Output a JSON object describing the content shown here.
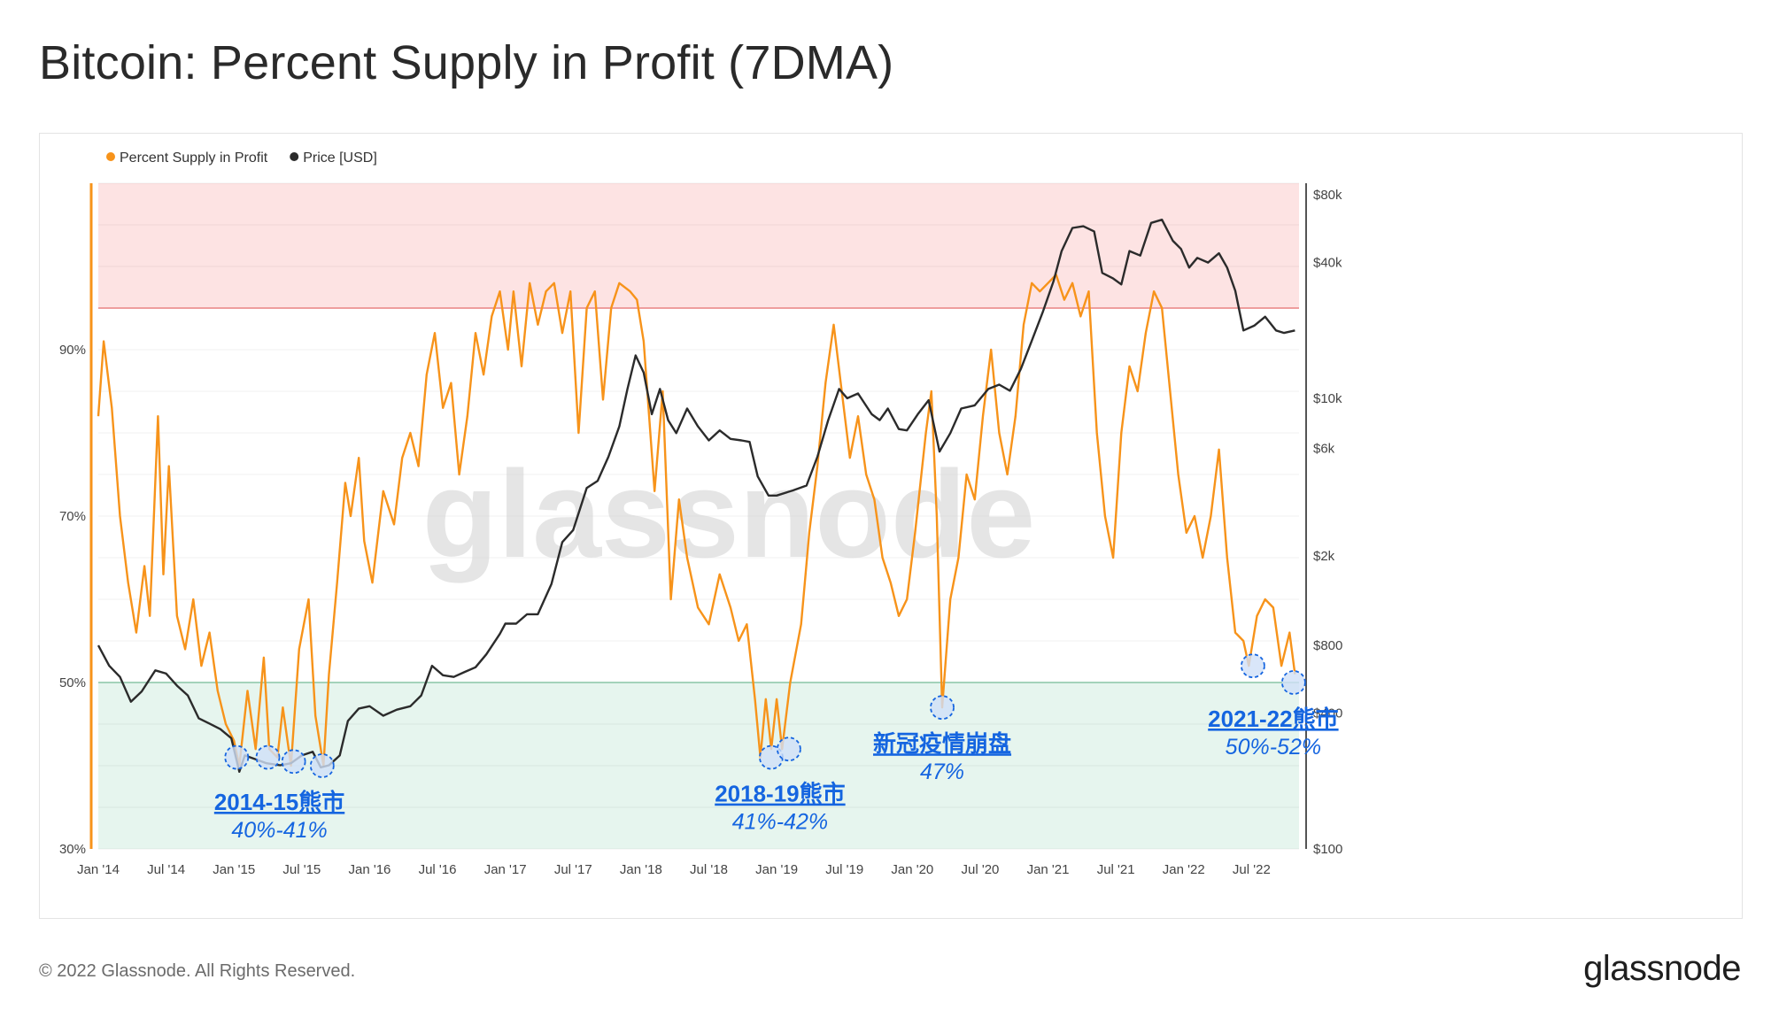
{
  "title": "Bitcoin: Percent Supply in Profit (7DMA)",
  "footer": {
    "copyright": "© 2022 Glassnode. All Rights Reserved.",
    "logo": "glassnode"
  },
  "watermark": "glassnode",
  "colors": {
    "supply": "#f7931a",
    "price": "#2b2b2b",
    "upper_zone": "#fde3e3",
    "upper_line": "#f5a3a3",
    "lower_zone": "#e6f5ee",
    "lower_line": "#a8d8c0",
    "annotation": "#1565e0"
  },
  "chart_data": {
    "type": "line",
    "legend": {
      "placement": "top-left",
      "items": [
        {
          "label": "Percent Supply in Profit",
          "color": "#f7931a"
        },
        {
          "label": "Price [USD]",
          "color": "#2b2b2b"
        }
      ]
    },
    "x_ticks": [
      "Jan '14",
      "Jul '14",
      "Jan '15",
      "Jul '15",
      "Jan '16",
      "Jul '16",
      "Jan '17",
      "Jul '17",
      "Jan '18",
      "Jul '18",
      "Jan '19",
      "Jul '19",
      "Jan '20",
      "Jul '20",
      "Jan '21",
      "Jul '21",
      "Jan '22",
      "Jul '22"
    ],
    "x_range": [
      2014.0,
      2022.85
    ],
    "left_axis": {
      "ticks": [
        "30%",
        "50%",
        "70%",
        "90%"
      ],
      "range": [
        30,
        110
      ]
    },
    "right_axis": {
      "scale": "log",
      "ticks": [
        "$100",
        "$400",
        "$800",
        "$2k",
        "$6k",
        "$10k",
        "$40k",
        "$80k"
      ],
      "range": [
        100,
        90000
      ]
    },
    "zones": {
      "upper_threshold": 95,
      "lower_threshold": 50
    },
    "series": [
      {
        "name": "Percent Supply in Profit",
        "axis": "left",
        "points": [
          [
            2014.0,
            82
          ],
          [
            2014.04,
            91
          ],
          [
            2014.1,
            83
          ],
          [
            2014.16,
            70
          ],
          [
            2014.22,
            62
          ],
          [
            2014.28,
            56
          ],
          [
            2014.34,
            64
          ],
          [
            2014.38,
            58
          ],
          [
            2014.44,
            82
          ],
          [
            2014.48,
            63
          ],
          [
            2014.52,
            76
          ],
          [
            2014.58,
            58
          ],
          [
            2014.64,
            54
          ],
          [
            2014.7,
            60
          ],
          [
            2014.76,
            52
          ],
          [
            2014.82,
            56
          ],
          [
            2014.88,
            49
          ],
          [
            2014.94,
            45
          ],
          [
            2015.0,
            43
          ],
          [
            2015.04,
            40
          ],
          [
            2015.1,
            49
          ],
          [
            2015.16,
            42
          ],
          [
            2015.22,
            53
          ],
          [
            2015.26,
            42
          ],
          [
            2015.32,
            41
          ],
          [
            2015.36,
            47
          ],
          [
            2015.42,
            40
          ],
          [
            2015.48,
            54
          ],
          [
            2015.55,
            60
          ],
          [
            2015.6,
            46
          ],
          [
            2015.66,
            40
          ],
          [
            2015.7,
            51
          ],
          [
            2015.76,
            62
          ],
          [
            2015.82,
            74
          ],
          [
            2015.86,
            70
          ],
          [
            2015.92,
            77
          ],
          [
            2015.96,
            67
          ],
          [
            2016.02,
            62
          ],
          [
            2016.1,
            73
          ],
          [
            2016.18,
            69
          ],
          [
            2016.24,
            77
          ],
          [
            2016.3,
            80
          ],
          [
            2016.36,
            76
          ],
          [
            2016.42,
            87
          ],
          [
            2016.48,
            92
          ],
          [
            2016.54,
            83
          ],
          [
            2016.6,
            86
          ],
          [
            2016.66,
            75
          ],
          [
            2016.72,
            82
          ],
          [
            2016.78,
            92
          ],
          [
            2016.84,
            87
          ],
          [
            2016.9,
            94
          ],
          [
            2016.96,
            97
          ],
          [
            2017.02,
            90
          ],
          [
            2017.06,
            97
          ],
          [
            2017.12,
            88
          ],
          [
            2017.18,
            98
          ],
          [
            2017.24,
            93
          ],
          [
            2017.3,
            97
          ],
          [
            2017.36,
            98
          ],
          [
            2017.42,
            92
          ],
          [
            2017.48,
            97
          ],
          [
            2017.54,
            80
          ],
          [
            2017.6,
            95
          ],
          [
            2017.66,
            97
          ],
          [
            2017.72,
            84
          ],
          [
            2017.78,
            95
          ],
          [
            2017.84,
            98
          ],
          [
            2017.92,
            97
          ],
          [
            2017.97,
            96
          ],
          [
            2018.02,
            91
          ],
          [
            2018.1,
            73
          ],
          [
            2018.16,
            85
          ],
          [
            2018.22,
            60
          ],
          [
            2018.28,
            72
          ],
          [
            2018.34,
            65
          ],
          [
            2018.42,
            59
          ],
          [
            2018.5,
            57
          ],
          [
            2018.58,
            63
          ],
          [
            2018.66,
            59
          ],
          [
            2018.72,
            55
          ],
          [
            2018.78,
            57
          ],
          [
            2018.84,
            48
          ],
          [
            2018.88,
            41
          ],
          [
            2018.92,
            48
          ],
          [
            2018.96,
            42
          ],
          [
            2019.0,
            48
          ],
          [
            2019.04,
            42
          ],
          [
            2019.1,
            50
          ],
          [
            2019.18,
            57
          ],
          [
            2019.24,
            68
          ],
          [
            2019.3,
            76
          ],
          [
            2019.36,
            86
          ],
          [
            2019.42,
            93
          ],
          [
            2019.48,
            85
          ],
          [
            2019.54,
            77
          ],
          [
            2019.6,
            82
          ],
          [
            2019.66,
            75
          ],
          [
            2019.72,
            72
          ],
          [
            2019.78,
            65
          ],
          [
            2019.84,
            62
          ],
          [
            2019.9,
            58
          ],
          [
            2019.96,
            60
          ],
          [
            2020.02,
            68
          ],
          [
            2020.1,
            80
          ],
          [
            2020.14,
            85
          ],
          [
            2020.18,
            70
          ],
          [
            2020.22,
            47
          ],
          [
            2020.28,
            60
          ],
          [
            2020.34,
            65
          ],
          [
            2020.4,
            75
          ],
          [
            2020.46,
            72
          ],
          [
            2020.52,
            82
          ],
          [
            2020.58,
            90
          ],
          [
            2020.64,
            80
          ],
          [
            2020.7,
            75
          ],
          [
            2020.76,
            82
          ],
          [
            2020.82,
            93
          ],
          [
            2020.88,
            98
          ],
          [
            2020.94,
            97
          ],
          [
            2021.0,
            98
          ],
          [
            2021.06,
            99
          ],
          [
            2021.12,
            96
          ],
          [
            2021.18,
            98
          ],
          [
            2021.24,
            94
          ],
          [
            2021.3,
            97
          ],
          [
            2021.36,
            80
          ],
          [
            2021.42,
            70
          ],
          [
            2021.48,
            65
          ],
          [
            2021.54,
            80
          ],
          [
            2021.6,
            88
          ],
          [
            2021.66,
            85
          ],
          [
            2021.72,
            92
          ],
          [
            2021.78,
            97
          ],
          [
            2021.84,
            95
          ],
          [
            2021.9,
            85
          ],
          [
            2021.96,
            75
          ],
          [
            2022.02,
            68
          ],
          [
            2022.08,
            70
          ],
          [
            2022.14,
            65
          ],
          [
            2022.2,
            70
          ],
          [
            2022.26,
            78
          ],
          [
            2022.32,
            65
          ],
          [
            2022.38,
            56
          ],
          [
            2022.44,
            55
          ],
          [
            2022.48,
            52
          ],
          [
            2022.54,
            58
          ],
          [
            2022.6,
            60
          ],
          [
            2022.66,
            59
          ],
          [
            2022.72,
            52
          ],
          [
            2022.78,
            56
          ],
          [
            2022.82,
            51
          ]
        ]
      },
      {
        "name": "Price [USD]",
        "axis": "right",
        "points": [
          [
            2014.0,
            800
          ],
          [
            2014.08,
            650
          ],
          [
            2014.16,
            580
          ],
          [
            2014.24,
            450
          ],
          [
            2014.32,
            500
          ],
          [
            2014.42,
            620
          ],
          [
            2014.5,
            600
          ],
          [
            2014.58,
            530
          ],
          [
            2014.66,
            480
          ],
          [
            2014.74,
            380
          ],
          [
            2014.82,
            360
          ],
          [
            2014.9,
            340
          ],
          [
            2014.98,
            310
          ],
          [
            2015.04,
            220
          ],
          [
            2015.08,
            260
          ],
          [
            2015.16,
            250
          ],
          [
            2015.24,
            240
          ],
          [
            2015.34,
            235
          ],
          [
            2015.42,
            240
          ],
          [
            2015.5,
            260
          ],
          [
            2015.58,
            270
          ],
          [
            2015.64,
            230
          ],
          [
            2015.7,
            235
          ],
          [
            2015.78,
            260
          ],
          [
            2015.84,
            370
          ],
          [
            2015.92,
            420
          ],
          [
            2016.0,
            430
          ],
          [
            2016.1,
            390
          ],
          [
            2016.2,
            415
          ],
          [
            2016.3,
            430
          ],
          [
            2016.38,
            480
          ],
          [
            2016.46,
            650
          ],
          [
            2016.54,
            590
          ],
          [
            2016.62,
            580
          ],
          [
            2016.7,
            610
          ],
          [
            2016.78,
            640
          ],
          [
            2016.86,
            730
          ],
          [
            2016.96,
            900
          ],
          [
            2017.0,
            1000
          ],
          [
            2017.08,
            1000
          ],
          [
            2017.16,
            1100
          ],
          [
            2017.24,
            1100
          ],
          [
            2017.34,
            1500
          ],
          [
            2017.42,
            2300
          ],
          [
            2017.5,
            2600
          ],
          [
            2017.6,
            4000
          ],
          [
            2017.68,
            4300
          ],
          [
            2017.76,
            5500
          ],
          [
            2017.84,
            7500
          ],
          [
            2017.9,
            11000
          ],
          [
            2017.96,
            15500
          ],
          [
            2018.02,
            13000
          ],
          [
            2018.08,
            8500
          ],
          [
            2018.14,
            11000
          ],
          [
            2018.2,
            8000
          ],
          [
            2018.26,
            7000
          ],
          [
            2018.34,
            9000
          ],
          [
            2018.42,
            7500
          ],
          [
            2018.5,
            6500
          ],
          [
            2018.58,
            7200
          ],
          [
            2018.66,
            6600
          ],
          [
            2018.74,
            6500
          ],
          [
            2018.8,
            6400
          ],
          [
            2018.86,
            4500
          ],
          [
            2018.94,
            3700
          ],
          [
            2019.0,
            3700
          ],
          [
            2019.12,
            3900
          ],
          [
            2019.22,
            4100
          ],
          [
            2019.3,
            5500
          ],
          [
            2019.38,
            8000
          ],
          [
            2019.46,
            11000
          ],
          [
            2019.52,
            10000
          ],
          [
            2019.6,
            10500
          ],
          [
            2019.7,
            8500
          ],
          [
            2019.76,
            8000
          ],
          [
            2019.82,
            9000
          ],
          [
            2019.9,
            7300
          ],
          [
            2019.96,
            7200
          ],
          [
            2020.04,
            8500
          ],
          [
            2020.12,
            9800
          ],
          [
            2020.2,
            5800
          ],
          [
            2020.28,
            7000
          ],
          [
            2020.36,
            9000
          ],
          [
            2020.46,
            9300
          ],
          [
            2020.56,
            11000
          ],
          [
            2020.64,
            11500
          ],
          [
            2020.72,
            10800
          ],
          [
            2020.8,
            13500
          ],
          [
            2020.88,
            18000
          ],
          [
            2020.96,
            24000
          ],
          [
            2021.04,
            33000
          ],
          [
            2021.1,
            45000
          ],
          [
            2021.18,
            57000
          ],
          [
            2021.26,
            58000
          ],
          [
            2021.34,
            55000
          ],
          [
            2021.4,
            36000
          ],
          [
            2021.48,
            34000
          ],
          [
            2021.54,
            32000
          ],
          [
            2021.6,
            45000
          ],
          [
            2021.68,
            43000
          ],
          [
            2021.76,
            60000
          ],
          [
            2021.84,
            62000
          ],
          [
            2021.92,
            50000
          ],
          [
            2021.98,
            46000
          ],
          [
            2022.04,
            38000
          ],
          [
            2022.1,
            42000
          ],
          [
            2022.18,
            40000
          ],
          [
            2022.26,
            44000
          ],
          [
            2022.32,
            38000
          ],
          [
            2022.38,
            30000
          ],
          [
            2022.44,
            20000
          ],
          [
            2022.52,
            21000
          ],
          [
            2022.6,
            23000
          ],
          [
            2022.68,
            20000
          ],
          [
            2022.74,
            19500
          ],
          [
            2022.82,
            20000
          ]
        ]
      }
    ],
    "annotations": [
      {
        "title": "2014-15熊市",
        "range": "40%-41%",
        "markers": [
          [
            2015.02,
            41
          ],
          [
            2015.25,
            41
          ],
          [
            2015.44,
            40.5
          ],
          [
            2015.65,
            40
          ]
        ]
      },
      {
        "title": "2018-19熊市",
        "range": "41%-42%",
        "markers": [
          [
            2018.96,
            41
          ],
          [
            2019.09,
            42
          ]
        ]
      },
      {
        "title": "新冠疫情崩盘",
        "range": "47%",
        "markers": [
          [
            2020.22,
            47
          ]
        ]
      },
      {
        "title": "2021-22熊市",
        "range": "50%-52%",
        "markers": [
          [
            2022.51,
            52
          ],
          [
            2022.81,
            50
          ]
        ]
      }
    ]
  }
}
